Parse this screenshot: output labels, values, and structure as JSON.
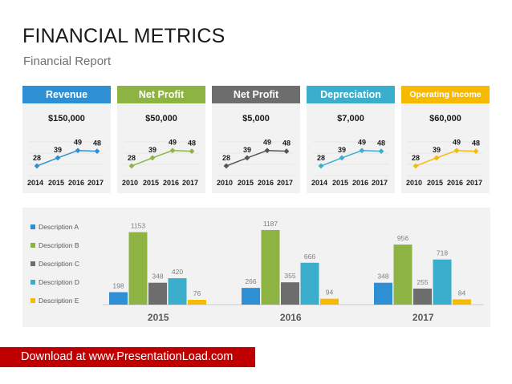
{
  "header": {
    "title": "FINANCIAL METRICS",
    "subtitle": "Financial Report"
  },
  "cards": [
    {
      "label": "Revenue",
      "amount": "$150,000",
      "color": "#2e8fd4",
      "line_color": "#2e8fd4",
      "years": [
        "2014",
        "2015",
        "2016",
        "2017"
      ],
      "values": [
        28,
        39,
        49,
        48
      ]
    },
    {
      "label": "Net Profit",
      "amount": "$50,000",
      "color": "#8db443",
      "line_color": "#8db443",
      "years": [
        "2010",
        "2015",
        "2016",
        "2017"
      ],
      "values": [
        28,
        39,
        49,
        48
      ]
    },
    {
      "label": "Net Profit",
      "amount": "$5,000",
      "color": "#6d6d6d",
      "line_color": "#555555",
      "years": [
        "2010",
        "2015",
        "2016",
        "2017"
      ],
      "values": [
        28,
        39,
        49,
        48
      ]
    },
    {
      "label": "Depreciation",
      "amount": "$7,000",
      "color": "#3aaecb",
      "line_color": "#3aaecb",
      "years": [
        "2014",
        "2015",
        "2016",
        "2017"
      ],
      "values": [
        28,
        39,
        49,
        48
      ]
    },
    {
      "label": "Operating Income",
      "amount": "$60,000",
      "color": "#f6bb00",
      "line_color": "#f6bb00",
      "years": [
        "2010",
        "2015",
        "2016",
        "2017"
      ],
      "values": [
        28,
        39,
        49,
        48
      ]
    }
  ],
  "chart_data": {
    "type": "bar",
    "categories": [
      "2015",
      "2016",
      "2017"
    ],
    "series": [
      {
        "name": "Description A",
        "color": "#2e8fd4",
        "values": [
          198,
          266,
          348
        ]
      },
      {
        "name": "Description B",
        "color": "#8db443",
        "values": [
          1153,
          1187,
          956
        ]
      },
      {
        "name": "Description C",
        "color": "#6d6d6d",
        "values": [
          348,
          355,
          255
        ]
      },
      {
        "name": "Description D",
        "color": "#3aaecb",
        "values": [
          420,
          666,
          718
        ]
      },
      {
        "name": "Description E",
        "color": "#f6bb00",
        "values": [
          76,
          94,
          84
        ]
      }
    ],
    "ylim": [
      0,
      1300
    ],
    "legend": "left",
    "grid": false
  },
  "footer": {
    "link_text": "Download at www.PresentationLoad.com"
  }
}
